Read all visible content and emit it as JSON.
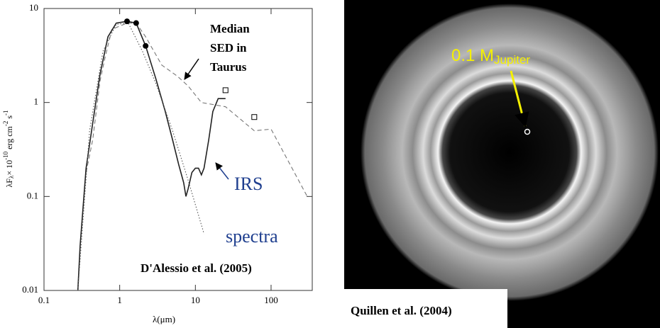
{
  "chart_data": {
    "type": "line",
    "log_x": true,
    "log_y": true,
    "xlim": [
      0.1,
      350
    ],
    "xticks": [
      0.1,
      1,
      10,
      100
    ],
    "ylim": [
      0.01,
      10
    ],
    "yticks": [
      0.01,
      0.1,
      1,
      10
    ],
    "x_label": {
      "main": "λ(μm)"
    },
    "y_label": {
      "main": "λF",
      "sub": "λ",
      "mid": "× 10",
      "exp": "-10",
      "unit": " erg cm",
      "exp2": "-2",
      "unit2": " s",
      "exp3": "-1"
    },
    "series": [
      {
        "style": "dashed",
        "color": "#777777",
        "x": [
          0.36,
          0.44,
          0.55,
          0.64,
          0.79,
          1.25,
          1.65,
          2.2,
          3.6,
          4.5,
          5.8,
          8,
          12,
          25,
          60,
          100,
          300
        ],
        "values": [
          0.18,
          0.4,
          1.7,
          3,
          6,
          7,
          7,
          5,
          2.5,
          2.2,
          1.9,
          1.5,
          1.0,
          0.9,
          0.5,
          0.52,
          0.1
        ]
      },
      {
        "style": "solid",
        "color": "#222222",
        "x": [
          0.28,
          0.3,
          0.36,
          0.44,
          0.55,
          0.7,
          0.9,
          1.25,
          1.65,
          2.2,
          3,
          4,
          5,
          6,
          7,
          7.5,
          8,
          9,
          10,
          11,
          12,
          13,
          15,
          17,
          20,
          25
        ],
        "values": [
          0.01,
          0.03,
          0.2,
          0.6,
          2,
          5,
          7,
          7.3,
          7,
          4,
          1.8,
          0.8,
          0.4,
          0.22,
          0.14,
          0.1,
          0.12,
          0.18,
          0.2,
          0.2,
          0.17,
          0.2,
          0.4,
          0.8,
          1.1,
          1.1
        ]
      },
      {
        "style": "dotted",
        "color": "#555555",
        "x": [
          0.28,
          0.4,
          0.6,
          0.9,
          1.3,
          2,
          3,
          5,
          8,
          13
        ],
        "values": [
          0.01,
          0.5,
          3.5,
          6.8,
          7,
          3.5,
          1.6,
          0.5,
          0.15,
          0.04
        ]
      },
      {
        "style": "filled-circles",
        "color": "#000000",
        "x": [
          1.25,
          1.65,
          2.2
        ],
        "values": [
          7.3,
          7,
          4
        ]
      },
      {
        "style": "open-squares",
        "color": "#000000",
        "x": [
          25,
          60
        ],
        "values": [
          1.35,
          0.7
        ]
      }
    ],
    "annotations": {
      "median": [
        "Median",
        "SED in",
        "Taurus"
      ],
      "irs": [
        "IRS",
        "spectra"
      ],
      "credit": "D'Alessio et al. (2005)"
    }
  },
  "image_panel": {
    "planet_label": "0.1 M",
    "planet_sub": "Jupiter",
    "credit": "Quillen et al. (2004)"
  }
}
